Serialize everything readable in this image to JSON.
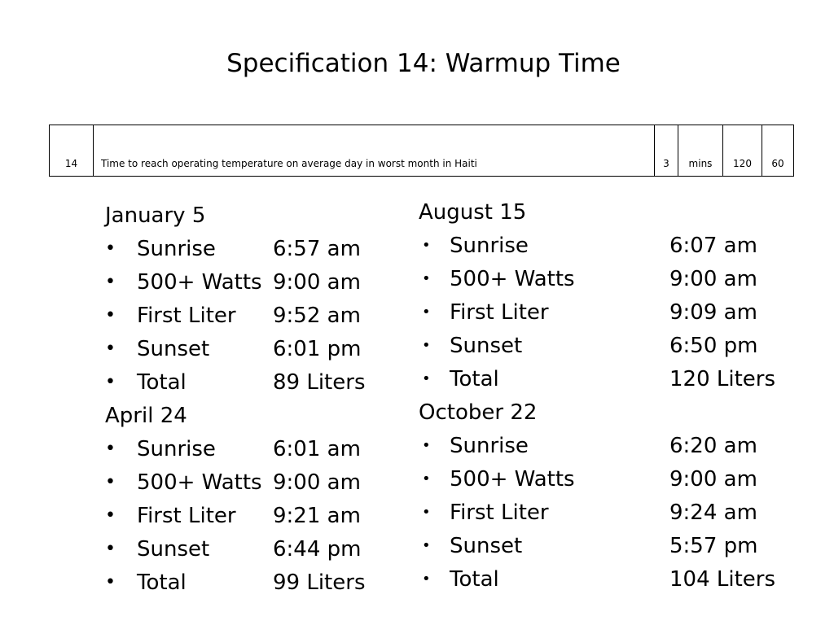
{
  "title": "Specification 14: Warmup Time",
  "spec_row": {
    "number": "14",
    "description": "Time to reach operating temperature on average day in worst month in Haiti",
    "weight": "3",
    "units": "mins",
    "marginal": "120",
    "ideal": "60"
  },
  "bullet_glyph": "•",
  "sections": [
    {
      "title": "January 5",
      "rows": [
        {
          "label": "Sunrise",
          "value": "6:57 am"
        },
        {
          "label": "500+ Watts",
          "value": "9:00 am"
        },
        {
          "label": "First Liter",
          "value": "9:52 am"
        },
        {
          "label": "Sunset",
          "value": "6:01 pm"
        },
        {
          "label": "Total",
          "value": "89 Liters"
        }
      ]
    },
    {
      "title": "April 24",
      "rows": [
        {
          "label": "Sunrise",
          "value": "6:01 am"
        },
        {
          "label": "500+ Watts",
          "value": "9:00 am"
        },
        {
          "label": "First Liter",
          "value": "9:21 am"
        },
        {
          "label": "Sunset",
          "value": "6:44 pm"
        },
        {
          "label": "Total",
          "value": "99 Liters"
        }
      ]
    },
    {
      "title": "August 15",
      "rows": [
        {
          "label": "Sunrise",
          "value": "6:07 am"
        },
        {
          "label": "500+ Watts",
          "value": "9:00 am"
        },
        {
          "label": "First Liter",
          "value": "9:09 am"
        },
        {
          "label": "Sunset",
          "value": "6:50 pm"
        },
        {
          "label": "Total",
          "value": "120 Liters"
        }
      ]
    },
    {
      "title": "October 22",
      "rows": [
        {
          "label": "Sunrise",
          "value": "6:20 am"
        },
        {
          "label": "500+ Watts",
          "value": "9:00 am"
        },
        {
          "label": "First Liter",
          "value": "9:24 am"
        },
        {
          "label": "Sunset",
          "value": "5:57 pm"
        },
        {
          "label": "Total",
          "value": "104 Liters"
        }
      ]
    }
  ]
}
